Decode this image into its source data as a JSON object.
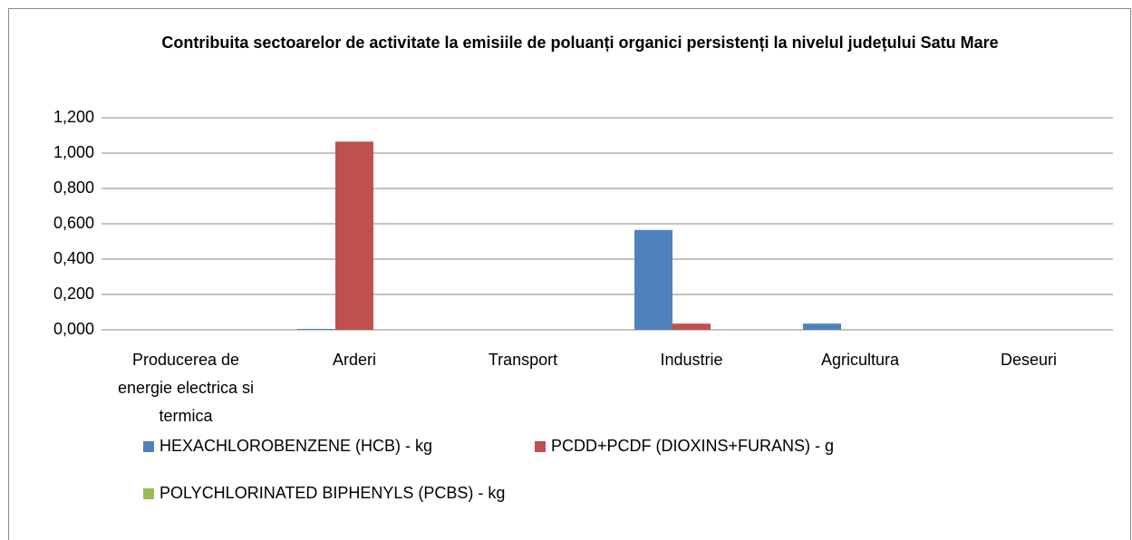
{
  "chart_data": {
    "type": "bar",
    "title": "Contribuita sectoarelor de activitate la emisiile de poluanți organici persistenți la nivelul  județului Satu Mare",
    "categories": [
      "Producerea de energie electrica si termica",
      "Arderi",
      "Transport",
      "Industrie",
      "Agricultura",
      "Deseuri"
    ],
    "series": [
      {
        "name": "HEXACHLOROBENZENE (HCB) - kg",
        "color": "#4f81bd",
        "values": [
          0,
          0.005,
          0,
          0.565,
          0.035,
          0
        ]
      },
      {
        "name": "PCDD+PCDF (DIOXINS+FURANS) - g",
        "color": "#c0504d",
        "values": [
          0,
          1.065,
          0,
          0.035,
          0,
          0
        ]
      },
      {
        "name": "POLYCHLORINATED BIPHENYLS (PCBS) - kg",
        "color": "#9bbb59",
        "values": [
          0,
          0,
          0,
          0,
          0,
          0
        ]
      }
    ],
    "ylim": [
      0,
      1.2
    ],
    "yticks": [
      {
        "value": 0,
        "label": "0,000"
      },
      {
        "value": 0.2,
        "label": "0,200"
      },
      {
        "value": 0.4,
        "label": "0,400"
      },
      {
        "value": 0.6,
        "label": "0,600"
      },
      {
        "value": 0.8,
        "label": "0,800"
      },
      {
        "value": 1.0,
        "label": "1,000"
      },
      {
        "value": 1.2,
        "label": "1,200"
      }
    ],
    "grid": true,
    "legend": "bottom"
  }
}
